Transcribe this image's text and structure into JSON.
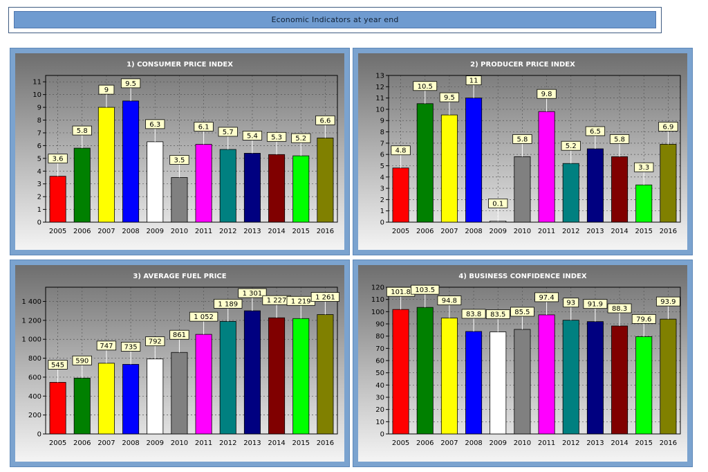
{
  "header": {
    "title": "Economic Indicators at year end"
  },
  "chart_data": [
    {
      "type": "bar",
      "title": "1) CONSUMER PRICE INDEX",
      "categories": [
        "2005",
        "2006",
        "2007",
        "2008",
        "2009",
        "2010",
        "2011",
        "2012",
        "2013",
        "2014",
        "2015",
        "2016"
      ],
      "values": [
        3.6,
        5.8,
        9,
        9.5,
        6.3,
        3.5,
        6.1,
        5.7,
        5.4,
        5.3,
        5.2,
        6.6
      ],
      "value_labels": [
        "3.6",
        "5.8",
        "9",
        "9.5",
        "6.3",
        "3.5",
        "6.1",
        "5.7",
        "5.4",
        "5.3",
        "5.2",
        "6.6"
      ],
      "ylim": [
        0,
        11.5
      ],
      "yticks": [
        0,
        1,
        2,
        3,
        4,
        5,
        6,
        7,
        8,
        9,
        10,
        11
      ],
      "ytick_labels": [
        "0",
        "1",
        "2",
        "3",
        "4",
        "5",
        "6",
        "7",
        "8",
        "9",
        "10",
        "11"
      ],
      "grid": true
    },
    {
      "type": "bar",
      "title": "2) PRODUCER PRICE INDEX",
      "categories": [
        "2005",
        "2006",
        "2007",
        "2008",
        "2009",
        "2010",
        "2011",
        "2012",
        "2013",
        "2014",
        "2015",
        "2016"
      ],
      "values": [
        4.8,
        10.5,
        9.5,
        11,
        0.1,
        5.8,
        9.8,
        5.2,
        6.5,
        5.8,
        3.3,
        6.9
      ],
      "value_labels": [
        "4.8",
        "10.5",
        "9.5",
        "11",
        "0.1",
        "5.8",
        "9.8",
        "5.2",
        "6.5",
        "5.8",
        "3.3",
        "6.9"
      ],
      "ylim": [
        0,
        13
      ],
      "yticks": [
        0,
        1,
        2,
        3,
        4,
        5,
        6,
        7,
        8,
        9,
        10,
        11,
        12,
        13
      ],
      "ytick_labels": [
        "0",
        "1",
        "2",
        "3",
        "4",
        "5",
        "6",
        "7",
        "8",
        "9",
        "10",
        "11",
        "12",
        "13"
      ],
      "grid": true
    },
    {
      "type": "bar",
      "title": "3) AVERAGE FUEL PRICE",
      "categories": [
        "2005",
        "2006",
        "2007",
        "2008",
        "2009",
        "2010",
        "2011",
        "2012",
        "2013",
        "2014",
        "2015",
        "2016"
      ],
      "values": [
        545,
        590,
        747,
        735,
        792,
        861,
        1052,
        1189,
        1301,
        1227,
        1219,
        1261
      ],
      "value_labels": [
        "545",
        "590",
        "747",
        "735",
        "792",
        "861",
        "1 052",
        "1 189",
        "1 301",
        "1 227",
        "1 219",
        "1 261"
      ],
      "ylim": [
        0,
        1550
      ],
      "yticks": [
        0,
        200,
        400,
        600,
        800,
        1000,
        1200,
        1400
      ],
      "ytick_labels": [
        "0",
        "200",
        "400",
        "600",
        "800",
        "1 000",
        "1 200",
        "1 400"
      ],
      "grid": true
    },
    {
      "type": "bar",
      "title": "4) BUSINESS CONFIDENCE INDEX",
      "categories": [
        "2005",
        "2006",
        "2007",
        "2008",
        "2009",
        "2010",
        "2011",
        "2012",
        "2013",
        "2014",
        "2015",
        "2016"
      ],
      "values": [
        101.8,
        103.5,
        94.8,
        83.8,
        83.5,
        85.5,
        97.4,
        93,
        91.9,
        88.3,
        79.6,
        93.9
      ],
      "value_labels": [
        "101.8",
        "103.5",
        "94.8",
        "83.8",
        "83.5",
        "85.5",
        "97.4",
        "93",
        "91.9",
        "88.3",
        "79.6",
        "93.9"
      ],
      "ylim": [
        0,
        120
      ],
      "yticks": [
        0,
        10,
        20,
        30,
        40,
        50,
        60,
        70,
        80,
        90,
        100,
        110,
        120
      ],
      "ytick_labels": [
        "0",
        "10",
        "20",
        "30",
        "40",
        "50",
        "60",
        "70",
        "80",
        "90",
        "100",
        "110",
        "120"
      ],
      "grid": true
    }
  ],
  "bar_colors": [
    "#ff0000",
    "#008000",
    "#ffff00",
    "#0000ff",
    "#ffffff",
    "#808080",
    "#ff00ff",
    "#008080",
    "#000080",
    "#800000",
    "#00ff00",
    "#808000"
  ],
  "label_box_color": "#ffffcc"
}
